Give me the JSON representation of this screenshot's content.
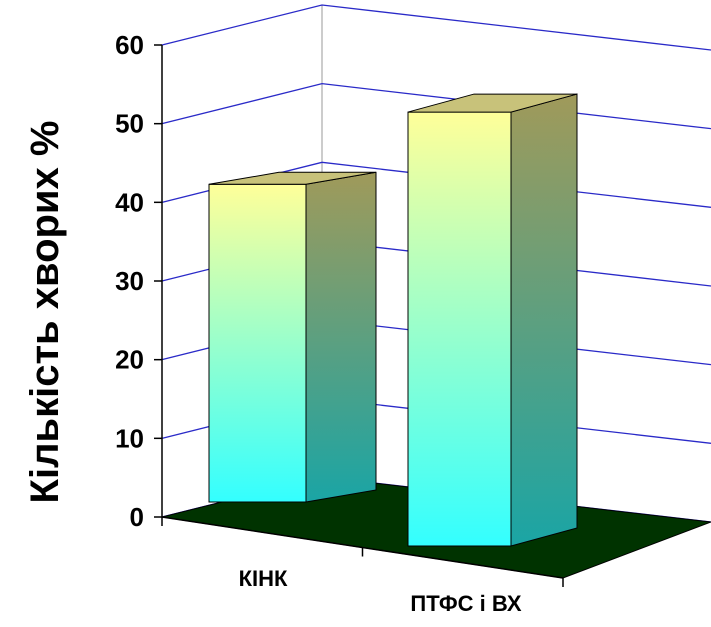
{
  "chart_data": {
    "type": "bar",
    "categories": [
      "КІНК",
      "ПТФС і ВХ"
    ],
    "values": [
      41,
      56
    ],
    "xlabel": "",
    "ylabel": "Кількість хворих %",
    "ylim": [
      0,
      60
    ],
    "yticks": [
      "0",
      "10",
      "20",
      "30",
      "40",
      "50",
      "60"
    ],
    "grid": true,
    "colors": {
      "gridline": "#2a2ac8",
      "floor": "#003300",
      "bar_top_color": "#ffff99",
      "bar_bottom_color": "#33ffff",
      "bar_side_top_color": "#a09a5a",
      "bar_side_bottom_color": "#1aa5a5",
      "bar_cap_color": "#c8c27a"
    }
  }
}
